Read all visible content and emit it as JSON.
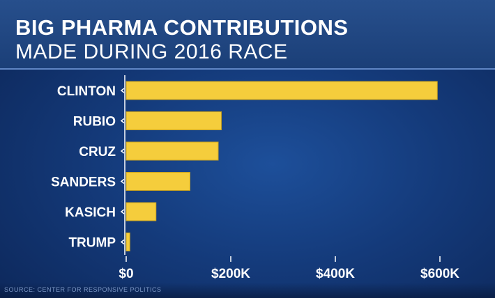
{
  "header": {
    "title_line1": "BIG PHARMA CONTRIBUTIONS",
    "title_line2": "MADE DURING 2016 RACE"
  },
  "source": "SOURCE: CENTER FOR RESPONSIVE POLITICS",
  "colors": {
    "bar": "#f5cd3c",
    "axis": "#ffffff",
    "text": "#ffffff"
  },
  "chart_data": {
    "type": "bar",
    "orientation": "horizontal",
    "categories": [
      "CLINTON",
      "RUBIO",
      "CRUZ",
      "SANDERS",
      "KASICH",
      "TRUMP"
    ],
    "values": [
      595000,
      182000,
      176000,
      122000,
      57000,
      7000
    ],
    "xlim": [
      0,
      600000
    ],
    "xticks": [
      0,
      200000,
      400000,
      600000
    ],
    "xtick_labels": [
      "$0",
      "$200K",
      "$400K",
      "$600K"
    ],
    "grid": false,
    "legend": "none"
  }
}
